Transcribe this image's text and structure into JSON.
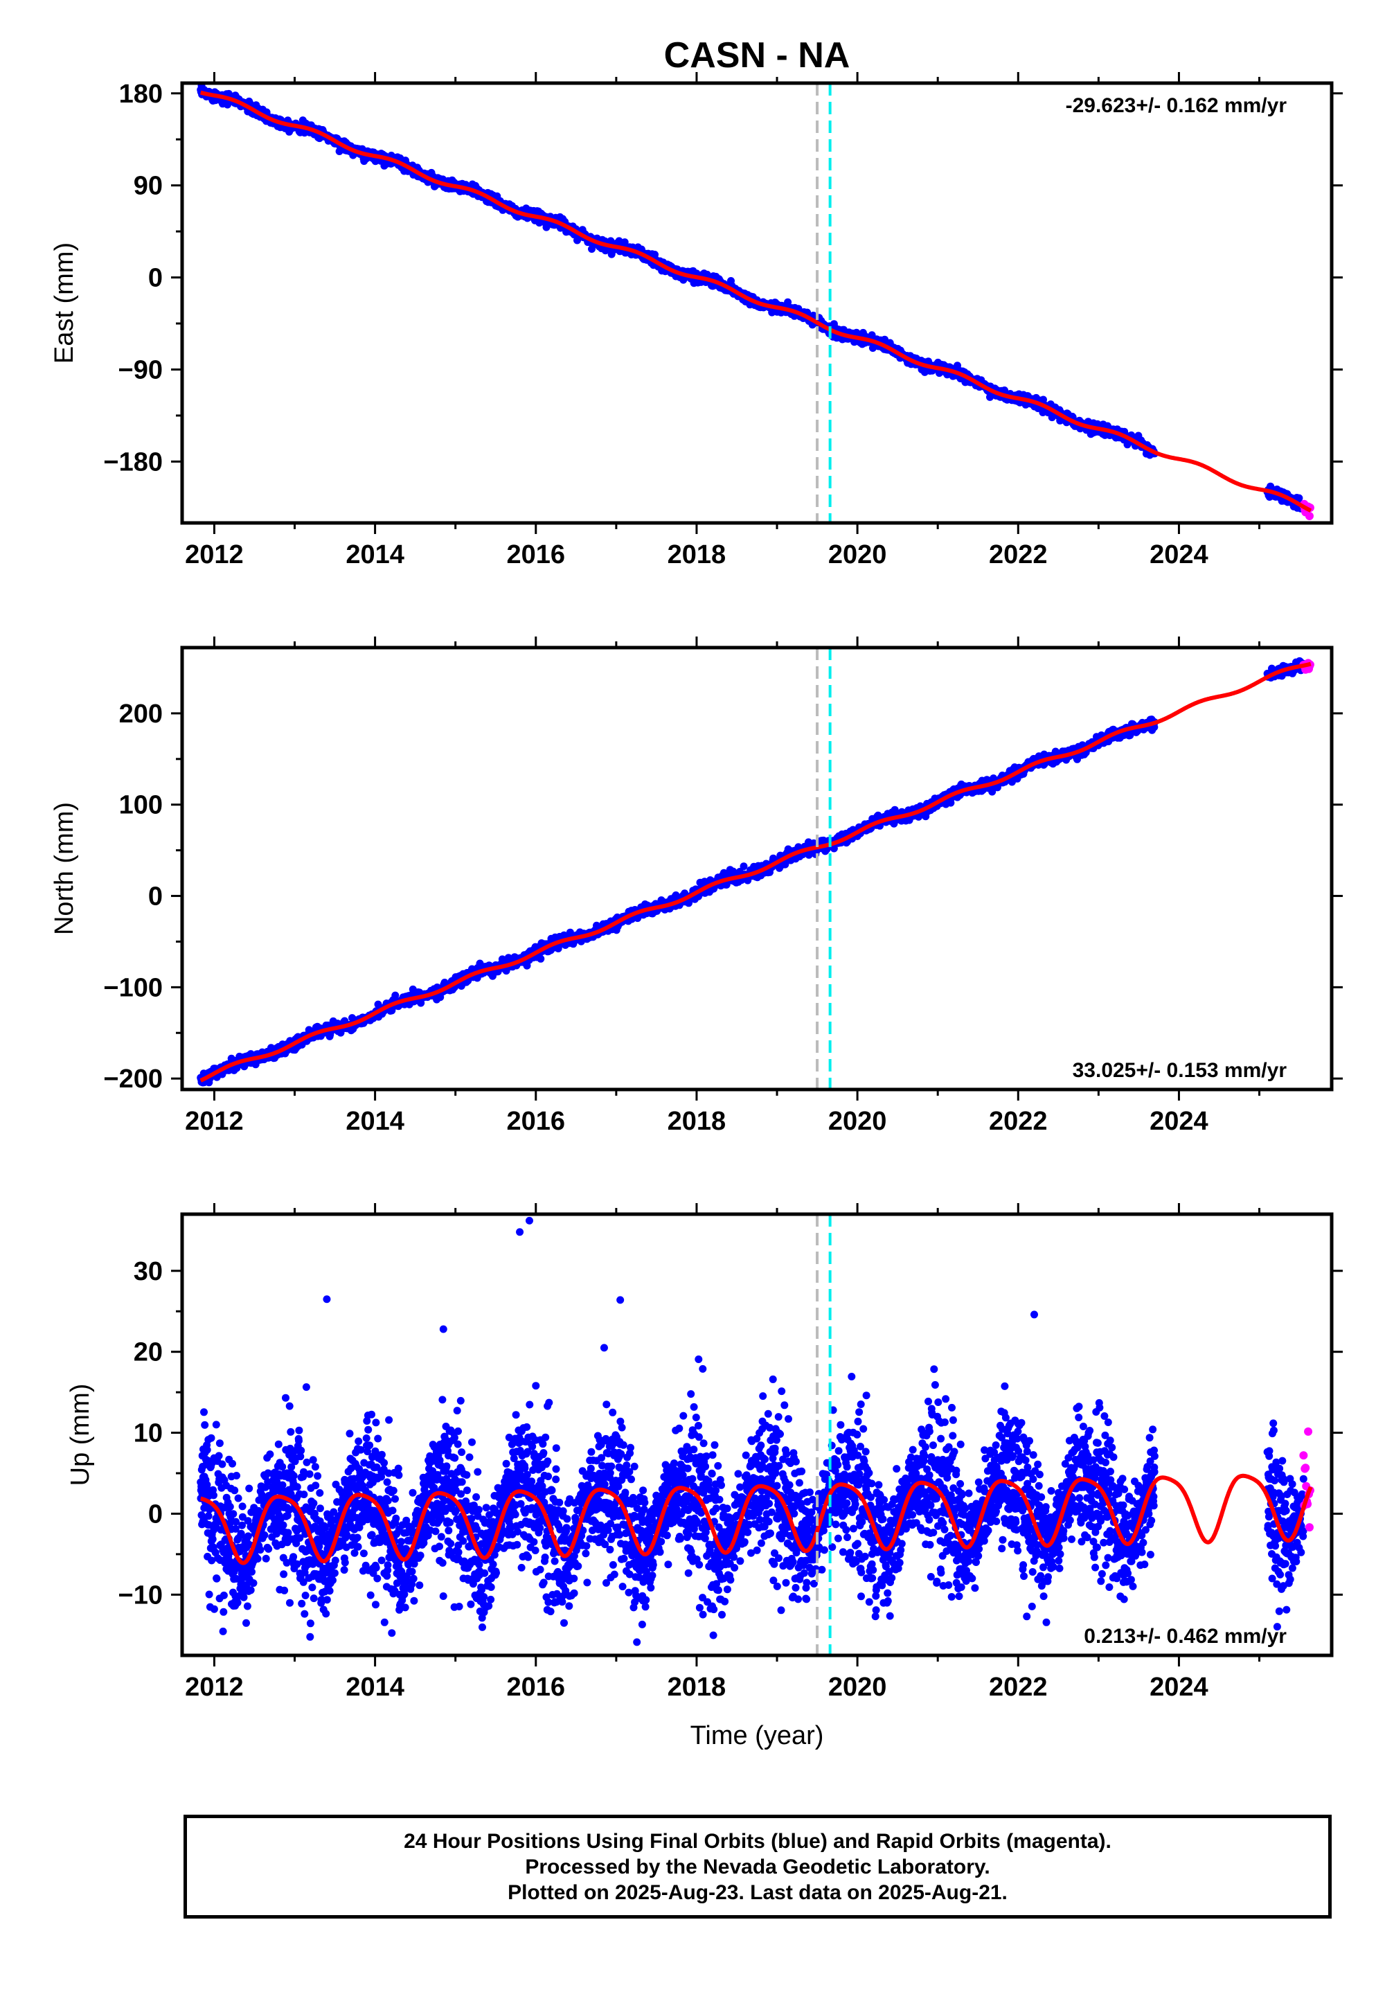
{
  "title": "CASN - NA",
  "x_label": "Time (year)",
  "colors": {
    "final_orbits": "#0000ff",
    "rapid_orbits": "#ff00ff",
    "model_fit": "#ff0000",
    "offset_gray": "#bbbbbb",
    "offset_cyan": "#00eeee"
  },
  "footer": {
    "line1": "24 Hour Positions Using Final Orbits (blue) and Rapid Orbits (magenta).",
    "line2": "Processed by the Nevada Geodetic Laboratory.",
    "line3": "Plotted on 2025-Aug-23. Last data on 2025-Aug-21."
  },
  "chart_data": [
    {
      "type": "scatter",
      "component": "East",
      "ylabel": "East (mm)",
      "xlabel": "",
      "rate_label": "-29.623+/- 0.162 mm/yr",
      "rate_label_position": "top-right",
      "xlim": [
        2011.6,
        2025.9
      ],
      "ylim": [
        -240,
        190
      ],
      "x_ticks": [
        2012,
        2014,
        2016,
        2018,
        2020,
        2022,
        2024
      ],
      "y_ticks": [
        180,
        90,
        0,
        -90,
        -180
      ],
      "y_tick_labels": [
        "180",
        "90",
        "0",
        "−90",
        "−180"
      ],
      "offset_lines": [
        {
          "x": 2019.5,
          "color": "gray"
        },
        {
          "x": 2019.66,
          "color": "cyan"
        }
      ],
      "series": [
        {
          "name": "Final Orbits",
          "color": "blue",
          "x_range": [
            2011.83,
            2023.7
          ],
          "gap": [
            2023.7,
            2025.1
          ],
          "x_range2": [
            2025.1,
            2025.55
          ],
          "rate": -29.623,
          "anchor_x": 2011.83,
          "anchor_y": 183,
          "scatter_mm": 2.5
        },
        {
          "name": "Rapid Orbits",
          "color": "magenta",
          "x_range": [
            2025.55,
            2025.64
          ]
        },
        {
          "name": "Model fit",
          "color": "red",
          "x_range": [
            2011.83,
            2025.64
          ]
        }
      ]
    },
    {
      "type": "scatter",
      "component": "North",
      "ylabel": "North (mm)",
      "xlabel": "",
      "rate_label": "33.025+/- 0.153 mm/yr",
      "rate_label_position": "bottom-right",
      "xlim": [
        2011.6,
        2025.9
      ],
      "ylim": [
        -212,
        272
      ],
      "x_ticks": [
        2012,
        2014,
        2016,
        2018,
        2020,
        2022,
        2024
      ],
      "y_ticks": [
        200,
        100,
        0,
        -100,
        -200
      ],
      "y_tick_labels": [
        "200",
        "100",
        "0",
        "−100",
        "−200"
      ],
      "offset_lines": [
        {
          "x": 2019.5,
          "color": "gray"
        },
        {
          "x": 2019.66,
          "color": "cyan"
        }
      ],
      "series": [
        {
          "name": "Final Orbits",
          "color": "blue",
          "x_range": [
            2011.83,
            2023.7
          ],
          "gap": [
            2023.7,
            2025.1
          ],
          "x_range2": [
            2025.1,
            2025.55
          ],
          "rate": 33.025,
          "anchor_x": 2011.83,
          "anchor_y": -200,
          "scatter_mm": 3
        },
        {
          "name": "Rapid Orbits",
          "color": "magenta",
          "x_range": [
            2025.55,
            2025.64
          ]
        },
        {
          "name": "Model fit",
          "color": "red",
          "x_range": [
            2011.83,
            2025.64
          ]
        }
      ]
    },
    {
      "type": "scatter",
      "component": "Up",
      "ylabel": "Up (mm)",
      "xlabel": "Time (year)",
      "rate_label": "0.213+/- 0.462 mm/yr",
      "rate_label_position": "bottom-right",
      "xlim": [
        2011.6,
        2025.9
      ],
      "ylim": [
        -17.5,
        37
      ],
      "x_ticks": [
        2012,
        2014,
        2016,
        2018,
        2020,
        2022,
        2024
      ],
      "y_ticks": [
        30,
        20,
        10,
        0,
        -10
      ],
      "y_tick_labels": [
        "30",
        "20",
        "10",
        "0",
        "−10"
      ],
      "offset_lines": [
        {
          "x": 2019.5,
          "color": "gray"
        },
        {
          "x": 2019.66,
          "color": "cyan"
        }
      ],
      "seasonal_amplitude_mm": 4,
      "noise_std_mm": 4,
      "outliers": [
        [
          2015.8,
          34.8
        ],
        [
          2015.92,
          36.2
        ],
        [
          2013.4,
          26.5
        ],
        [
          2017.05,
          26.4
        ],
        [
          2022.2,
          24.6
        ],
        [
          2014.85,
          22.8
        ],
        [
          2016.85,
          20.5
        ],
        [
          2018.95,
          16.6
        ]
      ],
      "series": [
        {
          "name": "Final Orbits",
          "color": "blue",
          "x_range": [
            2011.83,
            2023.7
          ],
          "gap": [
            2023.7,
            2025.1
          ],
          "x_range2": [
            2025.1,
            2025.55
          ],
          "rate": 0.213
        },
        {
          "name": "Rapid Orbits",
          "color": "magenta",
          "x_range": [
            2025.55,
            2025.64
          ]
        },
        {
          "name": "Model fit",
          "color": "red",
          "x_range": [
            2011.83,
            2025.64
          ]
        }
      ]
    }
  ]
}
